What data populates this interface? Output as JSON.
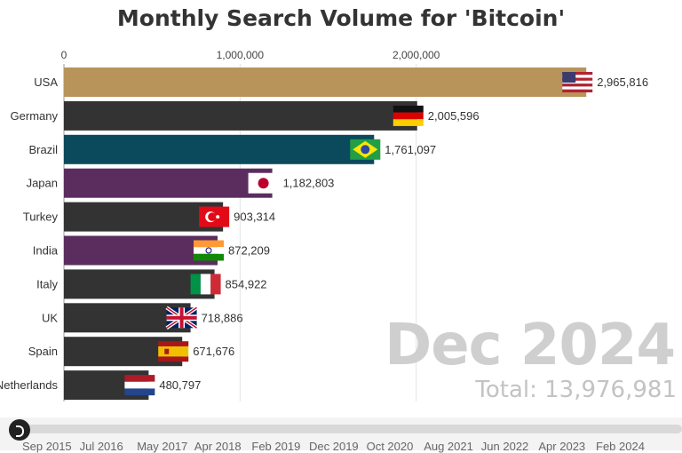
{
  "chart_data": {
    "type": "bar",
    "orientation": "horizontal",
    "title": "Monthly Search Volume for 'Bitcoin'",
    "xlim": [
      0,
      3000000
    ],
    "x_ticks": [
      0,
      1000000,
      2000000
    ],
    "x_tick_labels": [
      "0",
      "1,000,000",
      "2,000,000"
    ],
    "grid": true,
    "categories": [
      "USA",
      "Germany",
      "Brazil",
      "Japan",
      "Turkey",
      "India",
      "Italy",
      "UK",
      "Spain",
      "Netherlands"
    ],
    "values": [
      2965816,
      2005596,
      1761097,
      1182803,
      903314,
      872209,
      854922,
      718886,
      671676,
      480797
    ],
    "value_labels": [
      "2,965,816",
      "2,005,596",
      "1,761,097",
      "1,182,803",
      "903,314",
      "872,209",
      "854,922",
      "718,886",
      "671,676",
      "480,797"
    ],
    "colors": [
      "#b8935a",
      "#333333",
      "#0b4a5c",
      "#5a2d5e",
      "#333333",
      "#5a2d5e",
      "#333333",
      "#333333",
      "#333333",
      "#333333"
    ],
    "flag_icons": [
      "usa-flag-icon",
      "germany-flag-icon",
      "brazil-flag-icon",
      "japan-flag-icon",
      "turkey-flag-icon",
      "india-flag-icon",
      "italy-flag-icon",
      "uk-flag-icon",
      "spain-flag-icon",
      "netherlands-flag-icon"
    ],
    "period": "Dec 2024",
    "total_label": "Total: 13,976,981"
  },
  "timeline": {
    "labels": [
      "Sep 2015",
      "Jul 2016",
      "May 2017",
      "Apr 2018",
      "Feb 2019",
      "Dec 2019",
      "Oct 2020",
      "Aug 2021",
      "Jun 2022",
      "Apr 2023",
      "Feb 2024"
    ]
  }
}
